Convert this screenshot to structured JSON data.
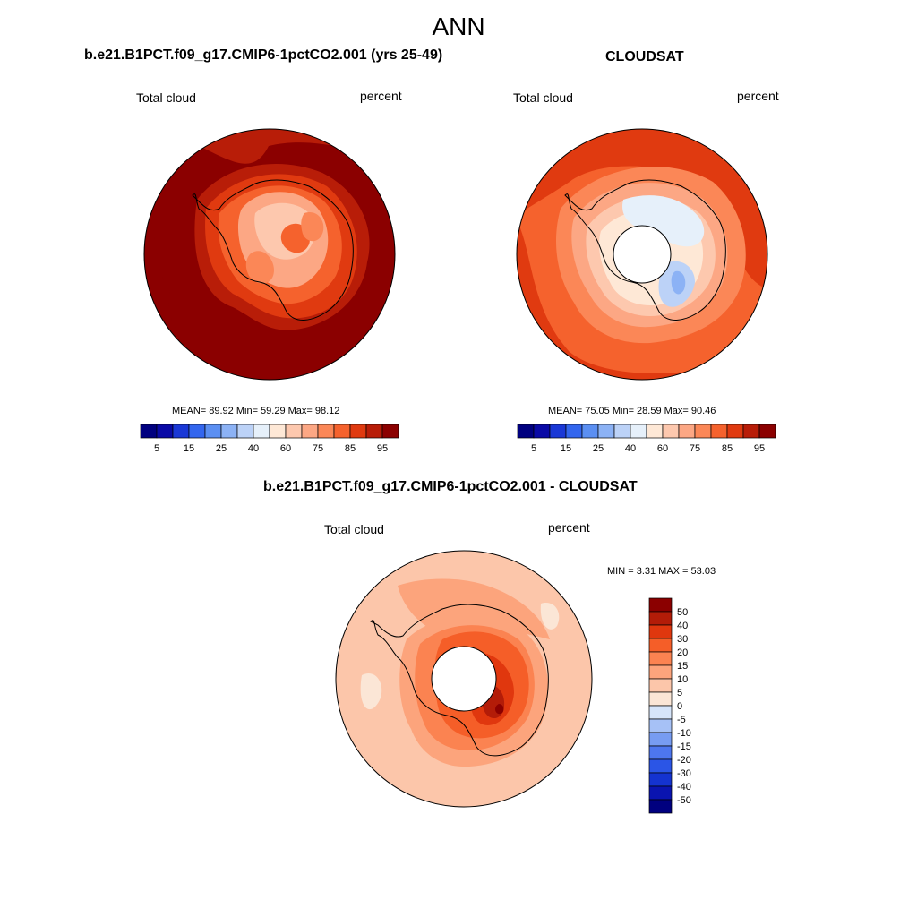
{
  "main_title": "ANN",
  "colors": {
    "abs_scale": [
      "#00007f",
      "#0a0aa6",
      "#1a38d6",
      "#3366ee",
      "#5b8ff2",
      "#8cb2f5",
      "#bcd2f7",
      "#e6f0fa",
      "#fee8d6",
      "#fdc8ae",
      "#fca784",
      "#fb8757",
      "#f5622d",
      "#e03a10",
      "#b81d08",
      "#8b0000"
    ],
    "diff_scale": [
      "#00007f",
      "#0a14b0",
      "#1433d0",
      "#2b55e6",
      "#4d76ee",
      "#779cf2",
      "#a6c1f6",
      "#d6e5fa",
      "#fbe6d6",
      "#fcc6aa",
      "#fca47c",
      "#fb8351",
      "#f55e28",
      "#e0370e",
      "#b31c08",
      "#8b0000"
    ]
  },
  "panels": {
    "model": {
      "title": "b.e21.B1PCT.f09_g17.CMIP6-1pctCO2.001 (yrs 25-49)",
      "left_label": "Total cloud",
      "right_label": "percent",
      "stats": "MEAN=  89.92  Min=  59.29  Max=  98.12"
    },
    "obs": {
      "title": "CLOUDSAT",
      "left_label": "Total cloud",
      "right_label": "percent",
      "stats": "MEAN=  75.05  Min=  28.59  Max=  90.46"
    },
    "diff": {
      "title": "b.e21.B1PCT.f09_g17.CMIP6-1pctCO2.001 - CLOUDSAT",
      "left_label": "Total cloud",
      "right_label": "percent",
      "stats": "MIN =   3.31 MAX =  53.03"
    }
  },
  "abs_ticks": [
    "5",
    "15",
    "25",
    "40",
    "60",
    "75",
    "85",
    "95"
  ],
  "diff_ticks": [
    "50",
    "40",
    "30",
    "20",
    "15",
    "10",
    "5",
    "0",
    "-5",
    "-10",
    "-15",
    "-20",
    "-30",
    "-40",
    "-50"
  ]
}
